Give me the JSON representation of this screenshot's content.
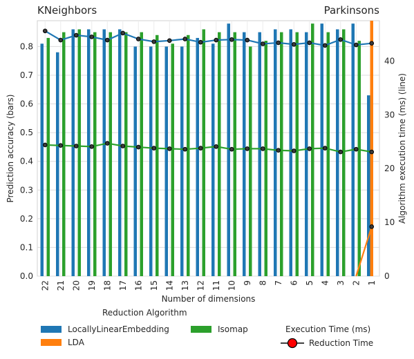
{
  "titles": {
    "left": "KNeighbors",
    "right": "Parkinsons"
  },
  "legend": {
    "bars_heading": "Reduction Algorithm",
    "line_heading": "Execution Time (ms)",
    "line_label": "Reduction Time"
  },
  "colors": {
    "LocallyLinearEmbedding": "#1f77b4",
    "LDA": "#ff7f0e",
    "Isomap": "#2ca02c",
    "marker": "#ff0000"
  },
  "chart_data": {
    "type": "bar",
    "xlabel": "Number of dimensions",
    "ylabel": "Prediction accuracy (bars)",
    "y2label": "Algorithm execution time (ms) (line)",
    "categories": [
      "22",
      "21",
      "20",
      "19",
      "18",
      "17",
      "16",
      "15",
      "14",
      "13",
      "12",
      "11",
      "10",
      "9",
      "8",
      "7",
      "6",
      "5",
      "4",
      "3",
      "2",
      "1"
    ],
    "ylim": [
      0,
      0.89
    ],
    "y2lim": [
      0,
      47.5
    ],
    "yticks": [
      0.0,
      0.1,
      0.2,
      0.3,
      0.4,
      0.5,
      0.6,
      0.7,
      0.8
    ],
    "y2ticks": [
      0,
      10,
      20,
      30,
      40
    ],
    "grid": true,
    "legend_position": "bottom",
    "bar_series": [
      {
        "name": "LocallyLinearEmbedding",
        "values": [
          0.81,
          0.78,
          0.86,
          0.86,
          0.86,
          0.86,
          0.8,
          0.8,
          0.8,
          0.8,
          0.83,
          0.81,
          0.88,
          0.85,
          0.85,
          0.86,
          0.86,
          0.85,
          0.88,
          0.86,
          0.88,
          0.63
        ]
      },
      {
        "name": "LDA",
        "values": [
          0,
          0,
          0,
          0,
          0,
          0,
          0,
          0,
          0,
          0,
          0,
          0,
          0,
          0,
          0,
          0,
          0,
          0,
          0,
          0,
          0,
          0.89
        ]
      },
      {
        "name": "Isomap",
        "values": [
          0.83,
          0.85,
          0.86,
          0.85,
          0.85,
          0.85,
          0.85,
          0.84,
          0.81,
          0.84,
          0.86,
          0.85,
          0.85,
          0.8,
          0.82,
          0.85,
          0.85,
          0.88,
          0.85,
          0.86,
          0.82,
          0
        ]
      }
    ],
    "line_series": [
      {
        "name": "LocallyLinearEmbedding",
        "values": [
          45.6,
          43.9,
          44.8,
          44.5,
          43.9,
          45.2,
          44.1,
          43.6,
          43.8,
          44.1,
          43.5,
          43.9,
          44.0,
          43.9,
          43.2,
          43.4,
          43.1,
          43.4,
          42.9,
          44.0,
          43.0,
          43.3
        ]
      },
      {
        "name": "Isomap",
        "values": [
          24.4,
          24.3,
          24.2,
          24.1,
          24.7,
          24.2,
          24.0,
          23.8,
          23.7,
          23.6,
          23.8,
          24.1,
          23.6,
          23.7,
          23.7,
          23.4,
          23.3,
          23.7,
          23.8,
          23.1,
          23.6,
          23.1
        ]
      },
      {
        "name": "LDA",
        "values": [
          null,
          null,
          null,
          null,
          null,
          null,
          null,
          null,
          null,
          null,
          null,
          null,
          null,
          null,
          null,
          null,
          null,
          null,
          null,
          null,
          0,
          9.2
        ]
      }
    ]
  }
}
